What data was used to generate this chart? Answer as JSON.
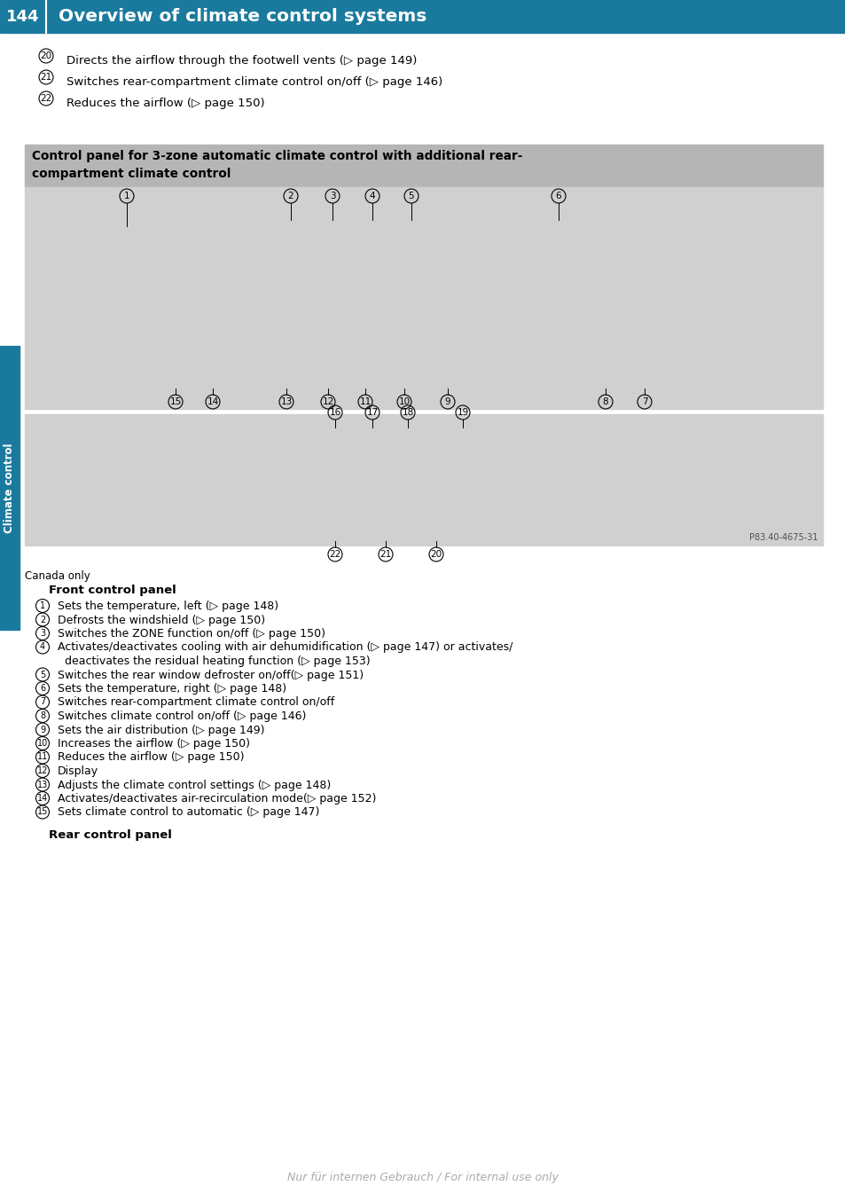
{
  "page_num": "144",
  "title": "Overview of climate control systems",
  "header_bg": "#1a7a9e",
  "header_text_color": "#ffffff",
  "sidebar_text": "Climate control",
  "sidebar_bg": "#1a7a9e",
  "box_title_line1": "Control panel for 3-zone automatic climate control with additional rear-",
  "box_title_line2": "compartment climate control",
  "box_title_bg": "#b8b8b8",
  "box_title_color": "#000000",
  "image_front_color": "#d2d2d2",
  "image_rear_color": "#d2d2d2",
  "watermark": "Nur für internen Gebrauch / For internal use only",
  "intro_nums": [
    "20",
    "21",
    "22"
  ],
  "intro_texts": [
    "Directs the airflow through the footwell vents (▷ page 149)",
    "Switches rear-compartment climate control on/off (▷ page 146)",
    "Reduces the airflow (▷ page 150)"
  ],
  "canada_only": "Canada only",
  "front_panel_title": "Front control panel",
  "front_items_nums": [
    "1",
    "2",
    "3",
    "4",
    "5",
    "6",
    "7",
    "8",
    "9",
    "10",
    "11",
    "12",
    "13",
    "14",
    "15"
  ],
  "front_items_texts": [
    "Sets the temperature, left (▷ page 148)",
    "Defrosts the windshield (▷ page 150)",
    "Switches the ZONE function on/off (▷ page 150)",
    "Activates/deactivates cooling with air dehumidification (▷ page 147) or activates/",
    "Switches the rear window defroster on/off(▷ page 151)",
    "Sets the temperature, right (▷ page 148)",
    "Switches rear-compartment climate control on/off",
    "Switches climate control on/off (▷ page 146)",
    "Sets the air distribution (▷ page 149)",
    "Increases the airflow (▷ page 150)",
    "Reduces the airflow (▷ page 150)",
    "Display",
    "Adjusts the climate control settings (▷ page 148)",
    "Activates/deactivates air-recirculation mode(▷ page 152)",
    "Sets climate control to automatic (▷ page 147)"
  ],
  "item4_line2": "deactivates the residual heating function (▷ page 153)",
  "rear_panel_title": "Rear control panel",
  "bg_color": "#ffffff",
  "text_color": "#000000"
}
